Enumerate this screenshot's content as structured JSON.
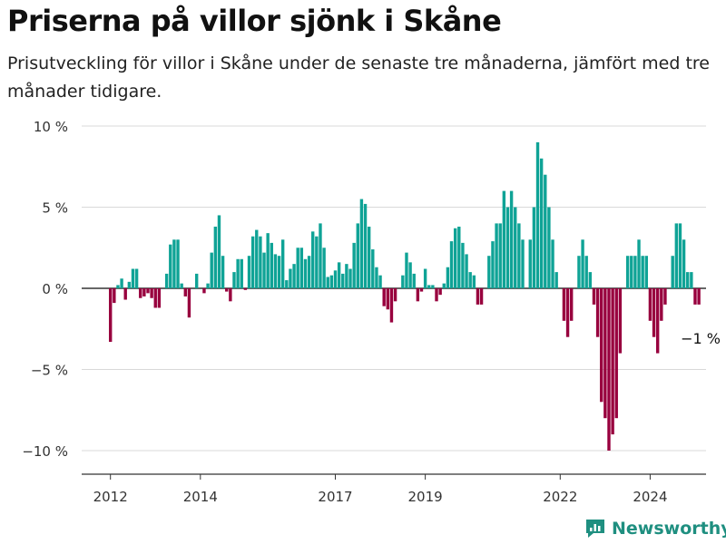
{
  "title": "Priserna på villor sjönk i Skåne",
  "subtitle": "Prisutveckling för villor i Skåne under de senaste tre månaderna, jämfört med tre månader tidigare.",
  "brand": "Newsworthy",
  "colors": {
    "positive": "#0fa396",
    "negative": "#98003e",
    "grid": "#d9d9d9",
    "axis": "#333333",
    "text": "#333333",
    "brand": "#1f8f80"
  },
  "chart_data": {
    "type": "bar",
    "x_start": "2012-01",
    "frequency": "monthly",
    "x_ticks": [
      "2012",
      "2014",
      "2017",
      "2019",
      "2022",
      "2024"
    ],
    "y_ticks": [
      "10 %",
      "5 %",
      "0 %",
      "−5 %",
      "−10 %"
    ],
    "y_tick_values": [
      10,
      5,
      0,
      -5,
      -10
    ],
    "ylim": [
      -11.5,
      10.5
    ],
    "grid": true,
    "last_label": "−1 %",
    "values": [
      -3.3,
      -0.9,
      0.2,
      0.6,
      -0.7,
      0.4,
      1.2,
      1.2,
      -0.6,
      -0.5,
      -0.3,
      -0.6,
      -1.2,
      -1.2,
      0,
      0.9,
      2.7,
      3.0,
      3.0,
      0.3,
      -0.5,
      -1.8,
      0,
      0.9,
      0,
      -0.3,
      0.3,
      2.2,
      3.8,
      4.5,
      2.0,
      -0.2,
      -0.8,
      1.0,
      1.8,
      1.8,
      -0.1,
      2.0,
      3.2,
      3.6,
      3.2,
      2.2,
      3.4,
      2.8,
      2.1,
      2.0,
      3.0,
      0.5,
      1.2,
      1.5,
      2.5,
      2.5,
      1.8,
      2.0,
      3.5,
      3.2,
      4.0,
      2.5,
      0.7,
      0.8,
      1.1,
      1.6,
      0.9,
      1.5,
      1.2,
      2.8,
      4.0,
      5.5,
      5.2,
      3.8,
      2.4,
      1.3,
      0.8,
      -1.1,
      -1.3,
      -2.1,
      -0.8,
      0,
      0.8,
      2.2,
      1.6,
      0.9,
      -0.8,
      -0.2,
      1.2,
      0.2,
      0.2,
      -0.8,
      -0.4,
      0.3,
      1.3,
      2.9,
      3.7,
      3.8,
      2.8,
      2.1,
      1.0,
      0.8,
      -1.0,
      -1.0,
      0,
      2.0,
      2.9,
      4.0,
      4.0,
      6.0,
      5.0,
      6.0,
      5.0,
      4.0,
      3.0,
      0,
      3.0,
      5.0,
      9.0,
      8.0,
      7.0,
      5.0,
      3.0,
      1.0,
      0,
      -2.0,
      -3.0,
      -2.0,
      0,
      2.0,
      3.0,
      2.0,
      1.0,
      -1.0,
      -3.0,
      -7.0,
      -8.0,
      -10.0,
      -9.0,
      -8.0,
      -4.0,
      0,
      2.0,
      2.0,
      2.0,
      3.0,
      2.0,
      2.0,
      -2.0,
      -3.0,
      -4.0,
      -2.0,
      -1.0,
      0,
      2.0,
      4.0,
      4.0,
      3.0,
      1.0,
      1.0,
      -1.0,
      -1.0
    ]
  }
}
